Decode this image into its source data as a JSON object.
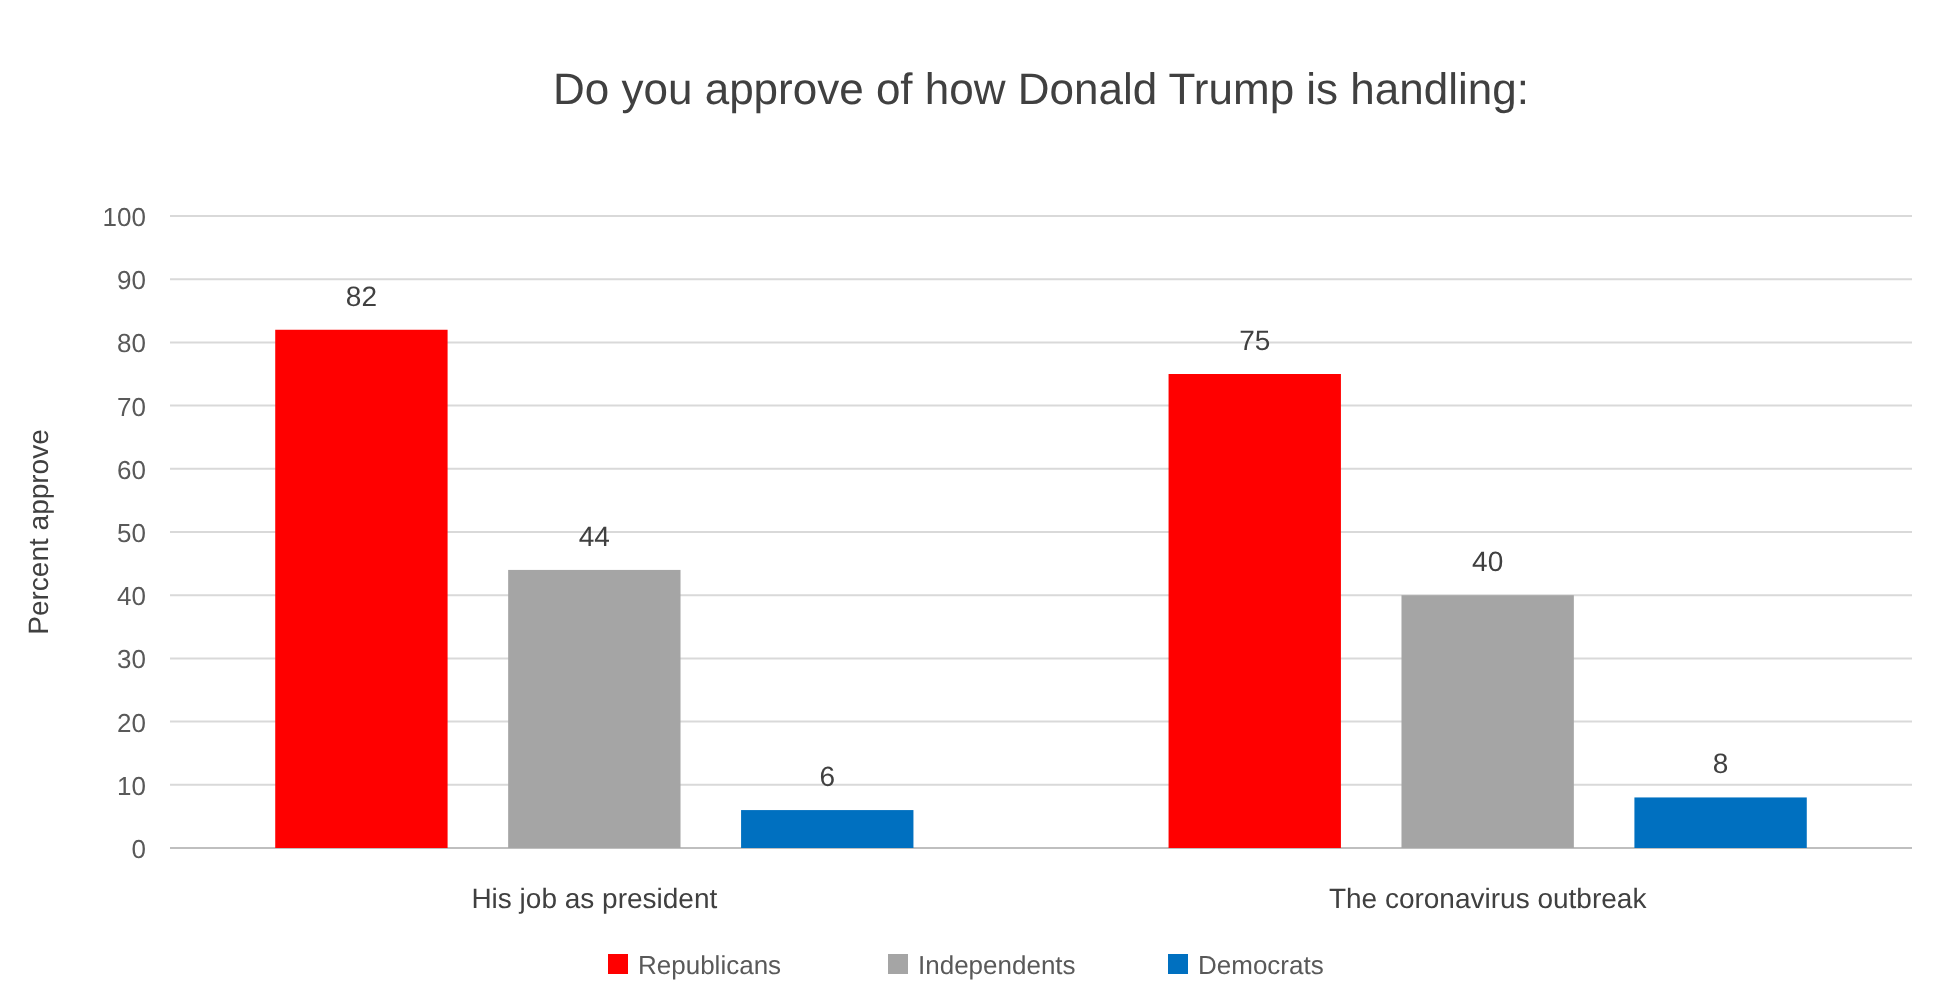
{
  "chart_data": {
    "type": "bar",
    "title": "Do you approve of how Donald Trump is handling:",
    "ylabel": "Percent approve",
    "categories": [
      "His job as president",
      "The coronavirus outbreak"
    ],
    "series": [
      {
        "name": "Republicans",
        "color": "#ff0000",
        "values": [
          82,
          75
        ]
      },
      {
        "name": "Independents",
        "color": "#a5a5a5",
        "values": [
          44,
          40
        ]
      },
      {
        "name": "Democrats",
        "color": "#0070c0",
        "values": [
          6,
          8
        ]
      }
    ],
    "ylim": [
      0,
      100
    ],
    "yticks": [
      0,
      10,
      20,
      30,
      40,
      50,
      60,
      70,
      80,
      90,
      100
    ],
    "grid": "y",
    "legend": "bottom",
    "data_labels": true
  }
}
